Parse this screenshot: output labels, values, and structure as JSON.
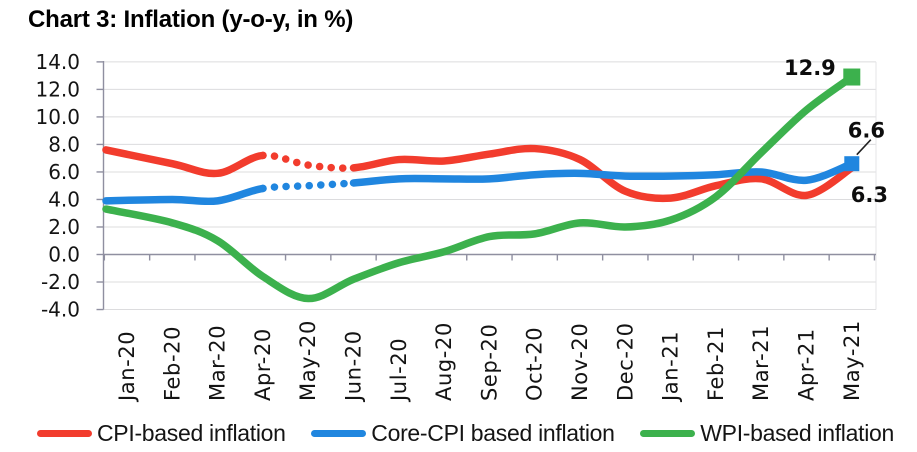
{
  "title": "Chart 3: Inflation (y-o-y, in %)",
  "chart_data": {
    "type": "line",
    "title": "Chart 3: Inflation (y-o-y, in %)",
    "x_labels": [
      "Jan-20",
      "Feb-20",
      "Mar-20",
      "Apr-20",
      "May-20",
      "Jun-20",
      "Jul-20",
      "Aug-20",
      "Sep-20",
      "Oct-20",
      "Nov-20",
      "Dec-20",
      "Jan-21",
      "Feb-21",
      "Mar-21",
      "Apr-21",
      "May-21"
    ],
    "y_ticks": [
      "14.0",
      "12.0",
      "10.0",
      "8.0",
      "6.0",
      "4.0",
      "2.0",
      "0.0",
      "-2.0",
      "-4.0"
    ],
    "ylim": [
      -4.0,
      14.0
    ],
    "grid": true,
    "legend_position": "bottom",
    "series": [
      {
        "name": "CPI-based inflation",
        "color": "#f23c2d",
        "values": [
          7.6,
          6.6,
          5.9,
          7.2,
          6.5,
          6.3,
          6.9,
          6.8,
          7.3,
          7.7,
          6.9,
          4.6,
          4.1,
          5.0,
          5.5,
          4.3,
          6.3
        ],
        "dotted_segment": [
          "Apr-20",
          "Jun-20"
        ],
        "end_label": "6.3"
      },
      {
        "name": "Core-CPI based inflation",
        "color": "#2086df",
        "values": [
          3.9,
          4.0,
          3.9,
          4.8,
          5.0,
          5.2,
          5.5,
          5.5,
          5.5,
          5.8,
          5.9,
          5.7,
          5.7,
          5.8,
          6.0,
          5.4,
          6.6
        ],
        "dotted_segment": [
          "Apr-20",
          "Jun-20"
        ],
        "end_label": "6.6",
        "end_marker": "square"
      },
      {
        "name": "WPI-based inflation",
        "color": "#3cb14d",
        "values": [
          3.3,
          2.3,
          1.0,
          -1.6,
          -3.2,
          -1.8,
          -0.6,
          0.2,
          1.3,
          1.5,
          2.3,
          2.0,
          2.5,
          4.2,
          7.4,
          10.5,
          12.9
        ],
        "end_label": "12.9",
        "end_marker": "square"
      }
    ]
  }
}
